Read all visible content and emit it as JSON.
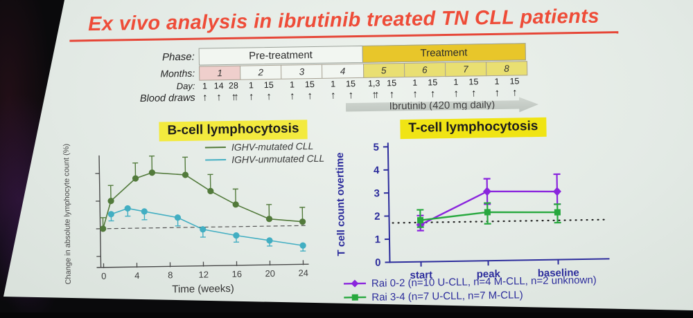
{
  "slide": {
    "title": "Ex vivo analysis in ibrutinib treated TN CLL patients",
    "accent_color": "#ee4c38",
    "background_color": "#e3eae5"
  },
  "timeline": {
    "phase_label": "Phase:",
    "phases": [
      {
        "label": "Pre-treatment",
        "color": "#f2f6f1",
        "span_months": 4
      },
      {
        "label": "Treatment",
        "color": "#e8c62a",
        "span_months": 4
      }
    ],
    "months_label": "Months:",
    "months": [
      {
        "label": "1",
        "color": "#efcfcc"
      },
      {
        "label": "2",
        "color": "#f2f6f1"
      },
      {
        "label": "3",
        "color": "#f2f6f1"
      },
      {
        "label": "4",
        "color": "#f2f6f1"
      },
      {
        "label": "5",
        "color": "#e9df72"
      },
      {
        "label": "6",
        "color": "#e9df72"
      },
      {
        "label": "7",
        "color": "#e9df72"
      },
      {
        "label": "8",
        "color": "#e9df72"
      }
    ],
    "day_label": "Day:",
    "days_by_month": [
      [
        "1",
        "14",
        "28"
      ],
      [
        "1",
        "15"
      ],
      [
        "1",
        "15"
      ],
      [
        "1",
        "15"
      ],
      [
        "1,3",
        "15"
      ],
      [
        "1",
        "15"
      ],
      [
        "1",
        "15"
      ],
      [
        "1",
        "15"
      ]
    ],
    "double_arrow_days": [
      "28",
      "1,3"
    ],
    "blood_draws_label": "Blood draws",
    "ibrutinib_label": "Ibrutinib (420 mg daily)"
  },
  "chart_data": [
    {
      "id": "bcell",
      "type": "line",
      "title": "B-cell lymphocytosis",
      "xlabel": "Time (weeks)",
      "ylabel": "Change in absolute lymphocyte count (%)",
      "x_ticks": [
        0,
        4,
        8,
        12,
        16,
        20,
        24
      ],
      "xlim": [
        0,
        26
      ],
      "ylim": [
        -65,
        135
      ],
      "baseline": 0,
      "baseline_style": "dashed",
      "y_ticks_unlabeled": [
        100,
        50,
        0,
        -50
      ],
      "legend_position": "top-right",
      "series": [
        {
          "name": "IGHV-mutated CLL",
          "color": "#527a3b",
          "marker": "circle",
          "error_direction": "up",
          "x": [
            0,
            1,
            4,
            6,
            10,
            13,
            16,
            20,
            24
          ],
          "y": [
            0,
            50,
            90,
            100,
            95,
            65,
            40,
            13,
            7
          ],
          "err": [
            20,
            28,
            28,
            30,
            32,
            30,
            28,
            26,
            26
          ]
        },
        {
          "name": "IGHV-unmutated CLL",
          "color": "#42aec2",
          "marker": "circle",
          "error_direction": "down",
          "x": [
            1,
            3,
            5,
            9,
            12,
            16,
            20,
            24
          ],
          "y": [
            26,
            36,
            30,
            18,
            -4,
            -16,
            -26,
            -36
          ],
          "err": [
            12,
            14,
            15,
            15,
            14,
            12,
            10,
            10
          ]
        }
      ]
    },
    {
      "id": "tcell",
      "type": "line",
      "title": "T-cell lymphocytosis",
      "ylabel": "T cell count overtime",
      "categories": [
        "start",
        "peak",
        "baseline"
      ],
      "ylim": [
        0,
        5
      ],
      "y_ticks": [
        0,
        1,
        2,
        3,
        4,
        5
      ],
      "reference_line": 1.7,
      "axis_color": "#2c2c9c",
      "series": [
        {
          "name": "Rai 0-2 (n=10 U-CLL, n=4 M-CLL, n=2 unknown)",
          "color": "#8a25dd",
          "marker": "diamond",
          "values": [
            1.6,
            3.0,
            2.95
          ],
          "err_up": [
            0.4,
            0.55,
            0.75
          ],
          "err_down": [
            0.25,
            0.55,
            0.55
          ]
        },
        {
          "name": "Rai 3-4 (n=7 U-CLL, n=7 M-CLL)",
          "color": "#27a83e",
          "marker": "square",
          "values": [
            1.8,
            2.1,
            2.05
          ],
          "err_up": [
            0.45,
            0.4,
            0.35
          ],
          "err_down": [
            0.3,
            0.5,
            0.45
          ]
        }
      ]
    }
  ]
}
